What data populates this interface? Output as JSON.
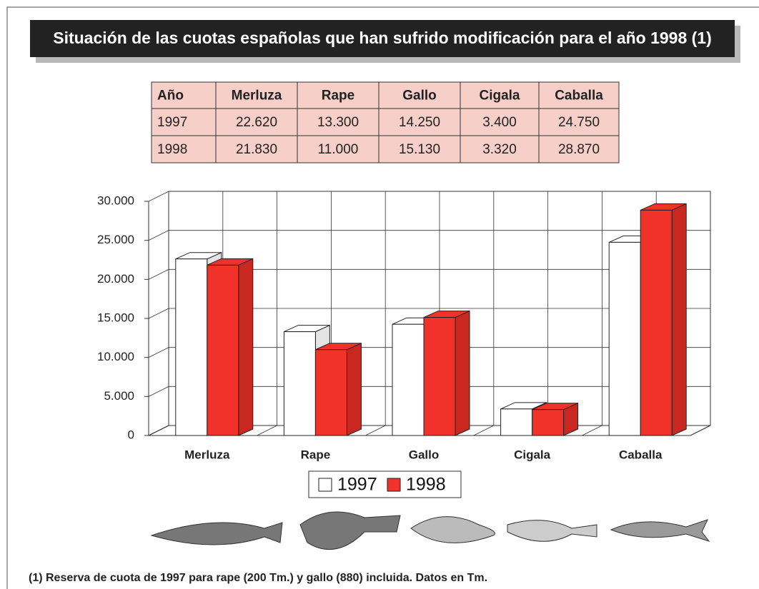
{
  "title": "Situación de las cuotas españolas que han sufrido modificación para el año 1998 (1)",
  "table": {
    "header": [
      "Año",
      "Merluza",
      "Rape",
      "Gallo",
      "Cigala",
      "Caballa"
    ],
    "rows": [
      [
        "1997",
        "22.620",
        "13.300",
        "14.250",
        "3.400",
        "24.750"
      ],
      [
        "1998",
        "21.830",
        "11.000",
        "15.130",
        "3.320",
        "28.870"
      ]
    ]
  },
  "chart_data": {
    "type": "bar",
    "categories": [
      "Merluza",
      "Rape",
      "Gallo",
      "Cigala",
      "Caballa"
    ],
    "series": [
      {
        "name": "1997",
        "color": "#ffffff",
        "values": [
          22620,
          13300,
          14250,
          3400,
          24750
        ]
      },
      {
        "name": "1998",
        "color": "#f0322a",
        "values": [
          21830,
          11000,
          15130,
          3320,
          28870
        ]
      }
    ],
    "ylim": [
      0,
      30000
    ],
    "yticks": [
      0,
      {
        "value": 5000,
        "label": "5.000"
      },
      {
        "value": 10000,
        "label": "10.000"
      },
      {
        "value": 15000,
        "label": "15.000"
      },
      {
        "value": 20000,
        "label": "20.000"
      },
      {
        "value": 25000,
        "label": "25.000"
      },
      {
        "value": 30000,
        "label": "30.000"
      }
    ],
    "grid": true
  },
  "footnote": "(1) Reserva de cuota de 1997 para rape (200 Tm.) y gallo (880) incluida. Datos en Tm."
}
